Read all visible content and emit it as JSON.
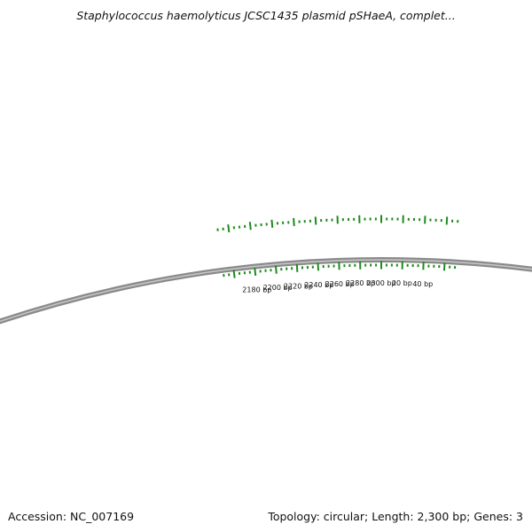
{
  "title": "Staphylococcus haemolyticus JCSC1435 plasmid pSHaeA, complet...",
  "accession": "Accession: NC_007169",
  "summary": "Topology: circular; Length: 2,300 bp; Genes: 3",
  "plasmid": {
    "length_bp": 2300,
    "topology": "circular",
    "genes": 3,
    "visible_range_bp": [
      2175,
      2300,
      45
    ]
  },
  "colors": {
    "tick": "#1e8a1e",
    "backbone": "#8a8a8a",
    "backbone_highlight": "#c8c8c8",
    "text": "#111111"
  },
  "ruler": {
    "labels": [
      {
        "pos": 2180,
        "text": "2180 bp"
      },
      {
        "pos": 2200,
        "text": "2200 bp"
      },
      {
        "pos": 2220,
        "text": "2220 bp"
      },
      {
        "pos": 2240,
        "text": "2240 bp"
      },
      {
        "pos": 2260,
        "text": "2260 bp"
      },
      {
        "pos": 2280,
        "text": "2280 bp"
      },
      {
        "pos": 2300,
        "text": "2300 bp"
      },
      {
        "pos": 20,
        "text": "20 bp"
      },
      {
        "pos": 40,
        "text": "40 bp"
      }
    ]
  }
}
